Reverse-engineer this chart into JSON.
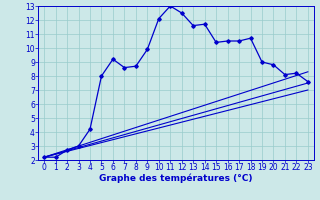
{
  "xlabel": "Graphe des températures (°C)",
  "bg_color": "#cce8e8",
  "grid_color": "#99cccc",
  "line_color": "#0000cc",
  "xlim": [
    -0.5,
    23.5
  ],
  "ylim": [
    2,
    13
  ],
  "xticks": [
    0,
    1,
    2,
    3,
    4,
    5,
    6,
    7,
    8,
    9,
    10,
    11,
    12,
    13,
    14,
    15,
    16,
    17,
    18,
    19,
    20,
    21,
    22,
    23
  ],
  "yticks": [
    2,
    3,
    4,
    5,
    6,
    7,
    8,
    9,
    10,
    11,
    12,
    13
  ],
  "main_line_x": [
    0,
    1,
    2,
    3,
    4,
    5,
    6,
    7,
    8,
    9,
    10,
    11,
    12,
    13,
    14,
    15,
    16,
    17,
    18,
    19,
    20,
    21,
    22,
    23
  ],
  "main_line_y": [
    2.2,
    2.2,
    2.7,
    3.0,
    4.2,
    8.0,
    9.2,
    8.6,
    8.7,
    9.9,
    12.1,
    13.0,
    12.5,
    11.6,
    11.7,
    10.4,
    10.5,
    10.5,
    10.7,
    9.0,
    8.8,
    8.1,
    8.2,
    7.6
  ],
  "smooth_line1_x": [
    0,
    23
  ],
  "smooth_line1_y": [
    2.2,
    8.3
  ],
  "smooth_line2_x": [
    0,
    23
  ],
  "smooth_line2_y": [
    2.2,
    7.5
  ],
  "smooth_line3_x": [
    0,
    23
  ],
  "smooth_line3_y": [
    2.2,
    7.0
  ],
  "tick_fontsize": 5.5,
  "xlabel_fontsize": 6.5
}
